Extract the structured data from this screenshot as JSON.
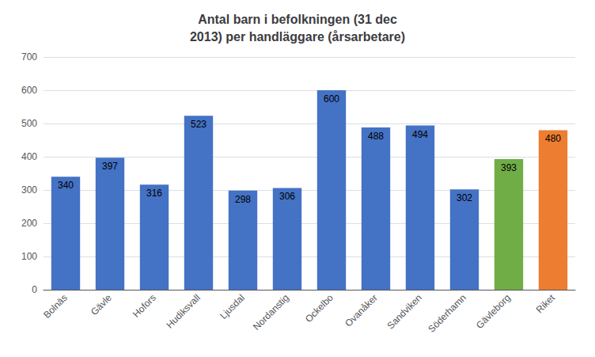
{
  "chart_data": {
    "type": "bar",
    "title": "Antal barn i befolkningen (31 dec\n2013) per handläggare (årsarbetare)",
    "categories": [
      "Bolnäs",
      "Gävle",
      "Hofors",
      "Hudiksvall",
      "Ljusdal",
      "Nordanstig",
      "Ockelbo",
      "Ovanåker",
      "Sandviken",
      "Söderhamn",
      "Gävleborg",
      "Riket"
    ],
    "values": [
      340,
      397,
      316,
      523,
      298,
      306,
      600,
      488,
      494,
      302,
      393,
      480
    ],
    "colors": [
      "#4472C4",
      "#4472C4",
      "#4472C4",
      "#4472C4",
      "#4472C4",
      "#4472C4",
      "#4472C4",
      "#4472C4",
      "#4472C4",
      "#4472C4",
      "#70AD47",
      "#ED7D31"
    ],
    "ylim": [
      0,
      700
    ],
    "yticks": [
      0,
      100,
      200,
      300,
      400,
      500,
      600,
      700
    ],
    "grid": true,
    "data_labels": true
  }
}
